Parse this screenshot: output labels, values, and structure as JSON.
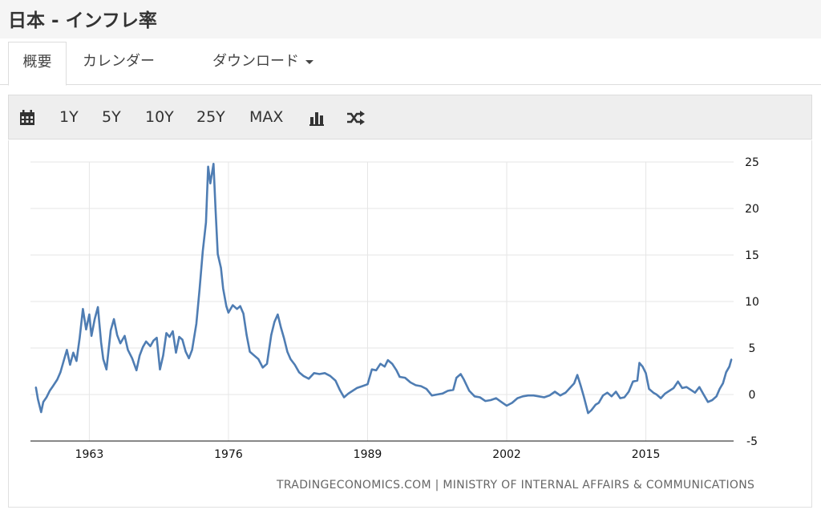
{
  "header": {
    "title": "日本 - インフレ率"
  },
  "tabs": [
    {
      "label": "概要"
    },
    {
      "label": "カレンダー"
    },
    {
      "label": "ダウンロード"
    }
  ],
  "toolbar": {
    "calendar_icon": "calendar-icon",
    "ranges": [
      "1Y",
      "5Y",
      "10Y",
      "25Y",
      "MAX"
    ],
    "chart_type_icon": "bar-chart-icon",
    "compare_icon": "shuffle-icon"
  },
  "colors": {
    "line": "#4f7db3",
    "grid": "#e6e6e6",
    "axis": "#111111"
  },
  "chart_data": {
    "type": "line",
    "title": "",
    "xlabel": "",
    "ylabel": "",
    "xlim": [
      1957.5,
      2023.2
    ],
    "ylim": [
      -5,
      25
    ],
    "yticks": [
      25,
      20,
      15,
      10,
      5,
      0,
      -5
    ],
    "xticks": [
      "1963",
      "1976",
      "1989",
      "2002",
      "2015"
    ],
    "grid": true,
    "y_axis_side": "right",
    "series": [
      {
        "name": "",
        "points": [
          [
            1958.0,
            0.8
          ],
          [
            1958.2,
            -0.5
          ],
          [
            1958.5,
            -1.9
          ],
          [
            1958.7,
            -0.8
          ],
          [
            1959.0,
            -0.3
          ],
          [
            1959.3,
            0.4
          ],
          [
            1959.6,
            0.9
          ],
          [
            1960.0,
            1.6
          ],
          [
            1960.3,
            2.4
          ],
          [
            1960.6,
            3.6
          ],
          [
            1960.9,
            4.8
          ],
          [
            1961.2,
            3.2
          ],
          [
            1961.5,
            4.5
          ],
          [
            1961.8,
            3.6
          ],
          [
            1962.1,
            6.1
          ],
          [
            1962.4,
            9.2
          ],
          [
            1962.7,
            7.0
          ],
          [
            1963.0,
            8.6
          ],
          [
            1963.2,
            6.3
          ],
          [
            1963.5,
            8.1
          ],
          [
            1963.8,
            9.4
          ],
          [
            1964.1,
            5.6
          ],
          [
            1964.3,
            3.8
          ],
          [
            1964.6,
            2.7
          ],
          [
            1965.0,
            6.9
          ],
          [
            1965.3,
            8.1
          ],
          [
            1965.6,
            6.4
          ],
          [
            1965.9,
            5.5
          ],
          [
            1966.3,
            6.3
          ],
          [
            1966.6,
            4.8
          ],
          [
            1967.0,
            3.9
          ],
          [
            1967.4,
            2.6
          ],
          [
            1967.7,
            4.2
          ],
          [
            1968.0,
            5.1
          ],
          [
            1968.3,
            5.7
          ],
          [
            1968.7,
            5.2
          ],
          [
            1969.0,
            5.8
          ],
          [
            1969.3,
            6.1
          ],
          [
            1969.6,
            2.7
          ],
          [
            1969.9,
            4.2
          ],
          [
            1970.2,
            6.6
          ],
          [
            1970.5,
            6.2
          ],
          [
            1970.8,
            6.8
          ],
          [
            1971.1,
            4.5
          ],
          [
            1971.4,
            6.2
          ],
          [
            1971.7,
            5.9
          ],
          [
            1972.0,
            4.6
          ],
          [
            1972.3,
            3.9
          ],
          [
            1972.6,
            4.8
          ],
          [
            1973.0,
            7.6
          ],
          [
            1973.3,
            11.3
          ],
          [
            1973.6,
            15.4
          ],
          [
            1973.9,
            18.5
          ],
          [
            1974.1,
            24.5
          ],
          [
            1974.3,
            22.7
          ],
          [
            1974.6,
            24.8
          ],
          [
            1974.8,
            19.8
          ],
          [
            1975.0,
            15.1
          ],
          [
            1975.3,
            13.6
          ],
          [
            1975.5,
            11.4
          ],
          [
            1975.8,
            9.5
          ],
          [
            1976.0,
            8.8
          ],
          [
            1976.4,
            9.6
          ],
          [
            1976.8,
            9.2
          ],
          [
            1977.1,
            9.5
          ],
          [
            1977.4,
            8.7
          ],
          [
            1977.7,
            6.4
          ],
          [
            1978.0,
            4.6
          ],
          [
            1978.4,
            4.2
          ],
          [
            1978.8,
            3.8
          ],
          [
            1979.2,
            2.9
          ],
          [
            1979.6,
            3.3
          ],
          [
            1980.0,
            6.4
          ],
          [
            1980.3,
            7.8
          ],
          [
            1980.6,
            8.6
          ],
          [
            1980.9,
            7.2
          ],
          [
            1981.2,
            6.0
          ],
          [
            1981.5,
            4.6
          ],
          [
            1981.8,
            3.8
          ],
          [
            1982.2,
            3.2
          ],
          [
            1982.6,
            2.4
          ],
          [
            1983.0,
            2.0
          ],
          [
            1983.5,
            1.7
          ],
          [
            1984.0,
            2.3
          ],
          [
            1984.5,
            2.2
          ],
          [
            1985.0,
            2.3
          ],
          [
            1985.5,
            2.0
          ],
          [
            1986.0,
            1.5
          ],
          [
            1986.4,
            0.5
          ],
          [
            1986.8,
            -0.3
          ],
          [
            1987.2,
            0.1
          ],
          [
            1987.6,
            0.4
          ],
          [
            1988.0,
            0.7
          ],
          [
            1988.5,
            0.9
          ],
          [
            1989.0,
            1.1
          ],
          [
            1989.4,
            2.7
          ],
          [
            1989.8,
            2.6
          ],
          [
            1990.2,
            3.3
          ],
          [
            1990.6,
            3.0
          ],
          [
            1990.9,
            3.7
          ],
          [
            1991.3,
            3.3
          ],
          [
            1991.7,
            2.6
          ],
          [
            1992.0,
            1.9
          ],
          [
            1992.5,
            1.8
          ],
          [
            1993.0,
            1.3
          ],
          [
            1993.5,
            1.0
          ],
          [
            1994.0,
            0.9
          ],
          [
            1994.5,
            0.6
          ],
          [
            1995.0,
            -0.1
          ],
          [
            1995.5,
            0.0
          ],
          [
            1996.0,
            0.1
          ],
          [
            1996.5,
            0.4
          ],
          [
            1997.0,
            0.5
          ],
          [
            1997.3,
            1.8
          ],
          [
            1997.7,
            2.2
          ],
          [
            1998.0,
            1.6
          ],
          [
            1998.5,
            0.4
          ],
          [
            1999.0,
            -0.2
          ],
          [
            1999.5,
            -0.3
          ],
          [
            2000.0,
            -0.7
          ],
          [
            2000.5,
            -0.6
          ],
          [
            2001.0,
            -0.4
          ],
          [
            2001.5,
            -0.8
          ],
          [
            2002.0,
            -1.2
          ],
          [
            2002.5,
            -0.9
          ],
          [
            2003.0,
            -0.4
          ],
          [
            2003.5,
            -0.2
          ],
          [
            2004.0,
            -0.1
          ],
          [
            2004.5,
            -0.1
          ],
          [
            2005.0,
            -0.2
          ],
          [
            2005.5,
            -0.3
          ],
          [
            2006.0,
            -0.1
          ],
          [
            2006.5,
            0.3
          ],
          [
            2007.0,
            -0.1
          ],
          [
            2007.5,
            0.2
          ],
          [
            2007.9,
            0.7
          ],
          [
            2008.3,
            1.2
          ],
          [
            2008.6,
            2.1
          ],
          [
            2008.9,
            1.0
          ],
          [
            2009.2,
            -0.2
          ],
          [
            2009.6,
            -2.0
          ],
          [
            2009.9,
            -1.7
          ],
          [
            2010.3,
            -1.1
          ],
          [
            2010.6,
            -0.9
          ],
          [
            2011.0,
            -0.1
          ],
          [
            2011.4,
            0.2
          ],
          [
            2011.8,
            -0.2
          ],
          [
            2012.2,
            0.3
          ],
          [
            2012.6,
            -0.4
          ],
          [
            2013.0,
            -0.3
          ],
          [
            2013.4,
            0.3
          ],
          [
            2013.8,
            1.4
          ],
          [
            2014.2,
            1.5
          ],
          [
            2014.4,
            3.4
          ],
          [
            2014.7,
            3.0
          ],
          [
            2015.0,
            2.3
          ],
          [
            2015.3,
            0.6
          ],
          [
            2015.7,
            0.2
          ],
          [
            2016.0,
            0.0
          ],
          [
            2016.4,
            -0.4
          ],
          [
            2016.8,
            0.1
          ],
          [
            2017.2,
            0.4
          ],
          [
            2017.6,
            0.7
          ],
          [
            2018.0,
            1.4
          ],
          [
            2018.4,
            0.7
          ],
          [
            2018.8,
            0.8
          ],
          [
            2019.2,
            0.5
          ],
          [
            2019.6,
            0.2
          ],
          [
            2020.0,
            0.8
          ],
          [
            2020.4,
            0.0
          ],
          [
            2020.8,
            -0.8
          ],
          [
            2021.2,
            -0.6
          ],
          [
            2021.6,
            -0.2
          ],
          [
            2021.9,
            0.6
          ],
          [
            2022.2,
            1.2
          ],
          [
            2022.5,
            2.4
          ],
          [
            2022.8,
            3.0
          ],
          [
            2023.0,
            3.8
          ]
        ]
      }
    ]
  },
  "source": "TRADINGECONOMICS.COM | MINISTRY OF INTERNAL AFFAIRS & COMMUNICATIONS"
}
